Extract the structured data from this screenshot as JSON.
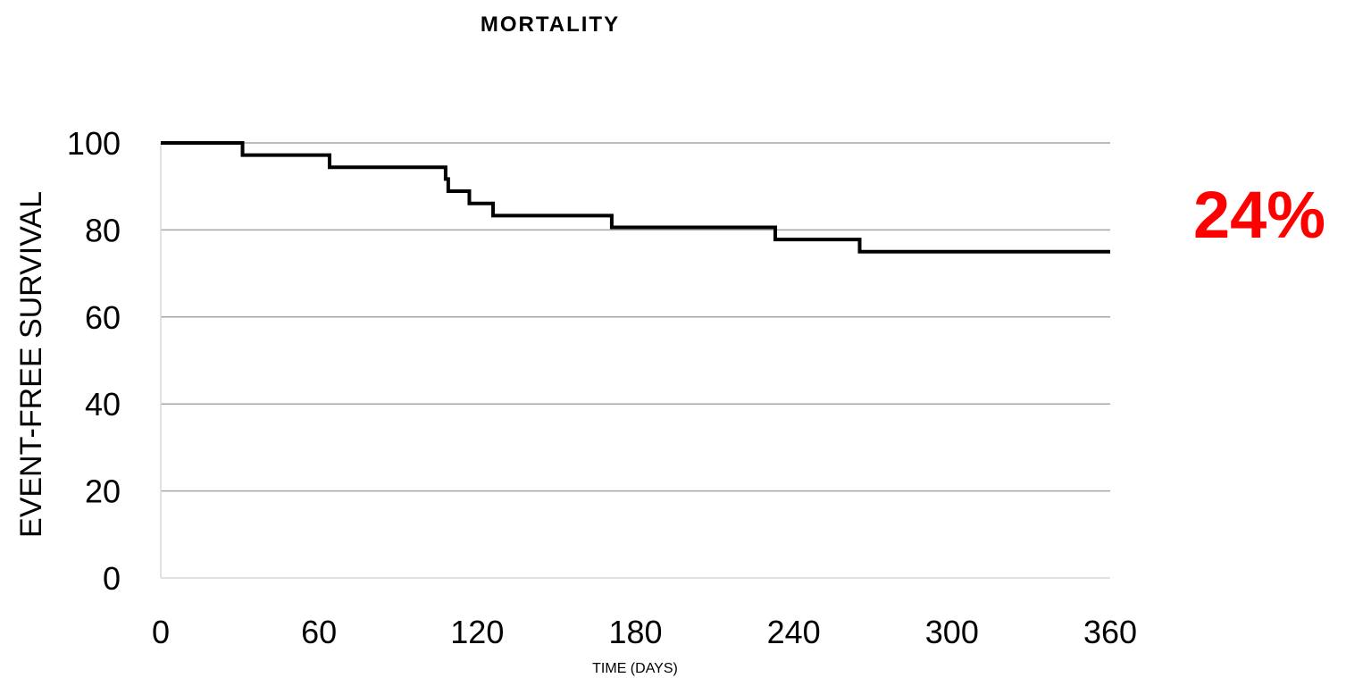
{
  "chart_data": {
    "type": "line",
    "title": "MORTALITY",
    "xlabel": "TIME (DAYS)",
    "ylabel": "EVENT-FREE SURVIVAL",
    "xlim": [
      0,
      360
    ],
    "ylim": [
      0,
      100
    ],
    "x_ticks": [
      "0",
      "60",
      "120",
      "180",
      "240",
      "300",
      "360"
    ],
    "y_ticks": [
      "0",
      "20",
      "40",
      "60",
      "80",
      "100"
    ],
    "grid": true,
    "step": true,
    "series": [
      {
        "x": [
          0,
          31,
          64,
          108,
          109,
          117,
          126,
          171,
          233,
          265,
          360
        ],
        "y": [
          100,
          97.2,
          94.4,
          91.7,
          88.9,
          86.1,
          83.3,
          80.6,
          77.8,
          75.0,
          75.0
        ]
      }
    ],
    "annotation": {
      "text": "24%",
      "color": "#ff0000"
    }
  }
}
